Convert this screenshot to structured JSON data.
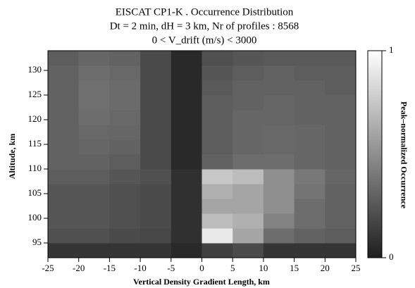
{
  "chart_data": {
    "type": "heatmap",
    "title": [
      "EISCAT  CP1-K . Occurrence Distribution",
      "Dt = 2 min, dH = 3 km, Nr of profiles :  8568",
      "0     < V_drift (m/s) <  3000"
    ],
    "xlabel": "Vertical Density Gradient Length, km",
    "ylabel": "Altitude, km",
    "colorbar_label": "Peak–normalized Occurrence",
    "xlim": [
      -25,
      25
    ],
    "xticks": [
      -25,
      -20,
      -15,
      -10,
      -5,
      0,
      5,
      10,
      15,
      20,
      25
    ],
    "ylim": [
      92,
      134
    ],
    "yticks": [
      95,
      100,
      105,
      110,
      115,
      120,
      125,
      130
    ],
    "clim": [
      0,
      1
    ],
    "cticks": [
      0,
      1
    ],
    "xbins": [
      -25,
      -20,
      -15,
      -10,
      -5,
      0,
      5,
      10,
      15,
      20,
      25
    ],
    "ybins": [
      92,
      95,
      98,
      101,
      104,
      107,
      110,
      113,
      116,
      119,
      122,
      125,
      128,
      131,
      134
    ],
    "z": [
      [
        0.1,
        0.1,
        0.1,
        0.1,
        0.05,
        0.15,
        0.2,
        0.1,
        0.1,
        0.1
      ],
      [
        0.22,
        0.22,
        0.2,
        0.18,
        0.08,
        0.9,
        0.6,
        0.35,
        0.3,
        0.28
      ],
      [
        0.25,
        0.25,
        0.22,
        0.2,
        0.08,
        0.7,
        0.65,
        0.45,
        0.35,
        0.3
      ],
      [
        0.25,
        0.25,
        0.22,
        0.2,
        0.08,
        0.6,
        0.6,
        0.5,
        0.35,
        0.3
      ],
      [
        0.25,
        0.25,
        0.22,
        0.2,
        0.08,
        0.65,
        0.6,
        0.5,
        0.38,
        0.3
      ],
      [
        0.28,
        0.28,
        0.25,
        0.22,
        0.08,
        0.75,
        0.7,
        0.5,
        0.4,
        0.32
      ],
      [
        0.3,
        0.3,
        0.28,
        0.2,
        0.05,
        0.3,
        0.35,
        0.35,
        0.32,
        0.3
      ],
      [
        0.3,
        0.32,
        0.3,
        0.2,
        0.05,
        0.28,
        0.32,
        0.33,
        0.32,
        0.3
      ],
      [
        0.3,
        0.33,
        0.32,
        0.2,
        0.05,
        0.28,
        0.32,
        0.33,
        0.32,
        0.3
      ],
      [
        0.3,
        0.35,
        0.33,
        0.2,
        0.05,
        0.28,
        0.32,
        0.32,
        0.3,
        0.3
      ],
      [
        0.3,
        0.36,
        0.34,
        0.2,
        0.05,
        0.28,
        0.3,
        0.32,
        0.3,
        0.3
      ],
      [
        0.3,
        0.36,
        0.34,
        0.2,
        0.05,
        0.26,
        0.3,
        0.3,
        0.3,
        0.28
      ],
      [
        0.3,
        0.35,
        0.33,
        0.2,
        0.05,
        0.25,
        0.28,
        0.3,
        0.28,
        0.28
      ],
      [
        0.28,
        0.32,
        0.3,
        0.2,
        0.05,
        0.22,
        0.25,
        0.26,
        0.26,
        0.26
      ]
    ]
  }
}
